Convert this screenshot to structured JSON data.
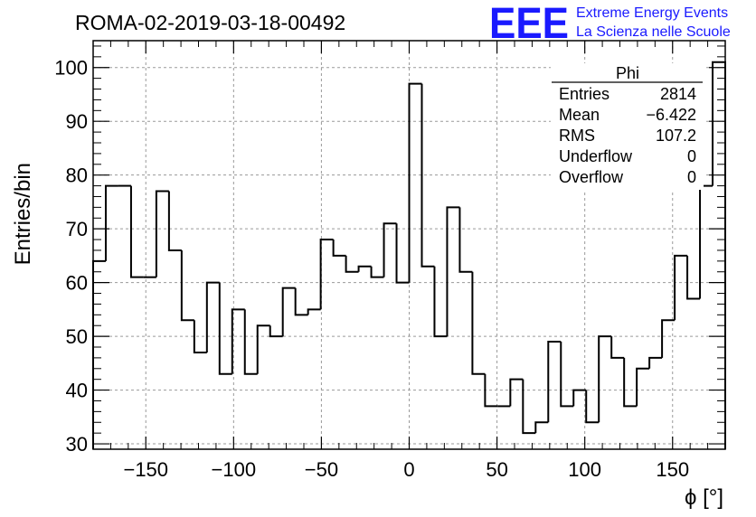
{
  "chart_data": {
    "type": "histogram",
    "title": "ROMA-02-2019-03-18-00492",
    "xlabel": "ϕ [°]",
    "ylabel": "Entries/bin",
    "xlim": [
      -180,
      180
    ],
    "ylim": [
      29,
      105
    ],
    "xticks": [
      -150,
      -100,
      -50,
      0,
      50,
      100,
      150
    ],
    "xtick_labels": [
      "−150",
      "−100",
      "−50",
      "0",
      "50",
      "100",
      "150"
    ],
    "yticks": [
      30,
      40,
      50,
      60,
      70,
      80,
      90,
      100
    ],
    "ytick_labels": [
      "30",
      "40",
      "50",
      "60",
      "70",
      "80",
      "90",
      "100"
    ],
    "grid": true,
    "bin_width": 7.2,
    "bin_start": -180,
    "values": [
      64,
      78,
      78,
      61,
      61,
      77,
      66,
      53,
      47,
      60,
      43,
      55,
      43,
      52,
      50,
      59,
      54,
      55,
      68,
      65,
      62,
      63,
      61,
      71,
      60,
      97,
      63,
      50,
      74,
      62,
      43,
      37,
      37,
      42,
      32,
      34,
      49,
      37,
      40,
      34,
      50,
      46,
      37,
      44,
      46,
      53,
      65,
      57,
      78,
      101
    ]
  },
  "stats_box": {
    "name": "Phi",
    "rows": [
      {
        "label": "Entries",
        "value": "2814"
      },
      {
        "label": "Mean",
        "value": "−6.422"
      },
      {
        "label": "RMS",
        "value": "107.2"
      },
      {
        "label": "Underflow",
        "value": "0"
      },
      {
        "label": "Overflow",
        "value": "0"
      }
    ]
  },
  "logo": {
    "mark": "EEE",
    "line1": "Extreme Energy Events",
    "line2": "La Scienza nelle Scuole",
    "color": "#1a1aff"
  }
}
